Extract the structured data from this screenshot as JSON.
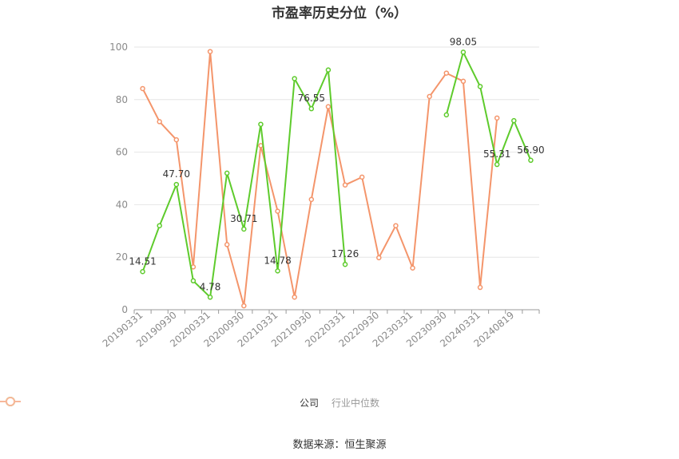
{
  "chart_data": {
    "type": "line",
    "title": "市盈率历史分位（%）",
    "source": "数据来源：恒生聚源",
    "ylim": [
      0,
      100
    ],
    "yticks": [
      0,
      20,
      40,
      60,
      80,
      100
    ],
    "x_tick_labels": [
      "20190331",
      "20190930",
      "20200331",
      "20200930",
      "20210331",
      "20210930",
      "20220331",
      "20220930",
      "20230331",
      "20230930",
      "20240331",
      "20240819"
    ],
    "series": [
      {
        "name": "公司",
        "color": "#5ecb2c",
        "points": [
          [
            0,
            14.51
          ],
          [
            1,
            32.0
          ],
          [
            2,
            47.7
          ],
          [
            3,
            11.0
          ],
          [
            4,
            4.78
          ],
          [
            5,
            52.0
          ],
          [
            6,
            30.71
          ],
          [
            7,
            70.6
          ],
          [
            8,
            14.78
          ],
          [
            9,
            88.0
          ],
          [
            10,
            76.55
          ],
          [
            11,
            91.3
          ],
          [
            12,
            17.26
          ],
          [
            18,
            74.2
          ],
          [
            19,
            98.05
          ],
          [
            20,
            85.0
          ],
          [
            21,
            55.31
          ],
          [
            22,
            72.0
          ],
          [
            23,
            56.9
          ]
        ],
        "labels": [
          {
            "i": 0,
            "text": "14.51"
          },
          {
            "i": 2,
            "text": "47.70"
          },
          {
            "i": 4,
            "text": "4.78"
          },
          {
            "i": 6,
            "text": "30.71"
          },
          {
            "i": 8,
            "text": "14.78"
          },
          {
            "i": 10,
            "text": "76.55"
          },
          {
            "i": 12,
            "text": "17.26"
          },
          {
            "i": 19,
            "text": "98.05"
          },
          {
            "i": 21,
            "text": "55.31"
          },
          {
            "i": 23,
            "text": "56.90"
          }
        ]
      },
      {
        "name": "行业中位数",
        "color": "#f4956b",
        "points": [
          [
            0,
            84.2
          ],
          [
            1,
            71.6
          ],
          [
            2,
            64.7
          ],
          [
            3,
            16.3
          ],
          [
            4,
            98.3
          ],
          [
            5,
            24.8
          ],
          [
            6,
            1.5
          ],
          [
            7,
            62.5
          ],
          [
            8,
            37.5
          ],
          [
            9,
            4.8
          ],
          [
            10,
            42.0
          ],
          [
            11,
            77.3
          ],
          [
            12,
            47.5
          ],
          [
            13,
            50.5
          ],
          [
            14,
            19.8
          ],
          [
            15,
            32.0
          ],
          [
            16,
            15.9
          ],
          [
            17,
            81.2
          ],
          [
            18,
            90.1
          ],
          [
            19,
            87.0
          ],
          [
            20,
            8.5
          ],
          [
            21,
            73.0
          ]
        ],
        "labels": []
      }
    ]
  }
}
